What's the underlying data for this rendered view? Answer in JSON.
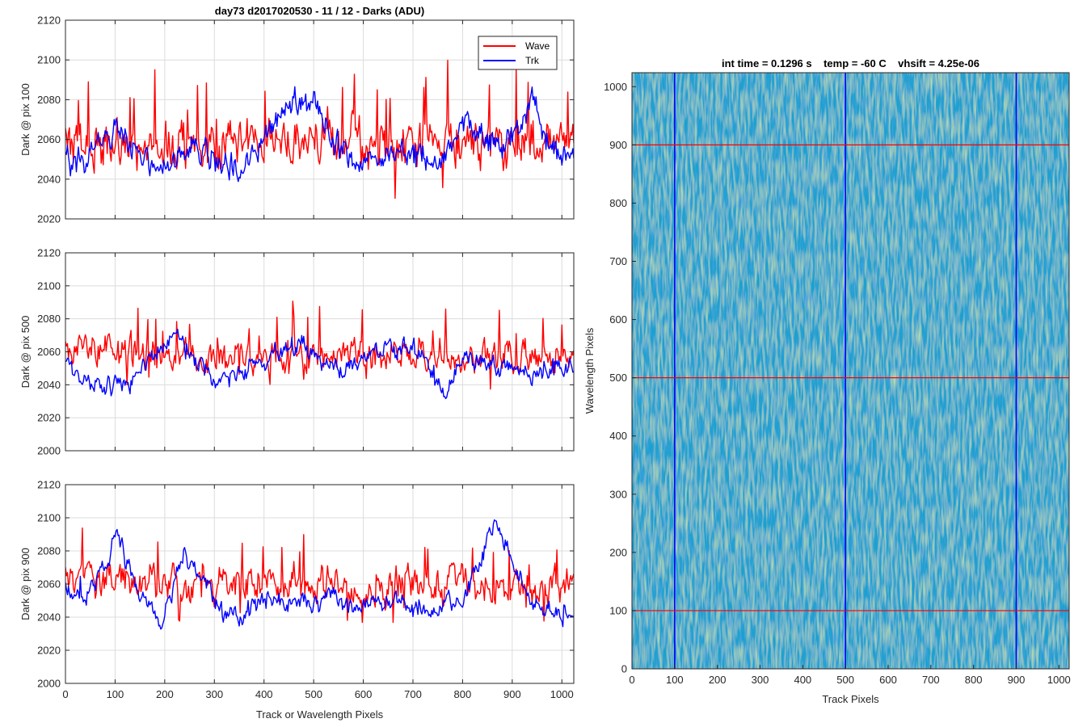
{
  "colors": {
    "wave": "#ff0000",
    "trk": "#0000ff",
    "grid": "#dcdcdc",
    "axis": "#262626",
    "heat_low": "#1f5ec9",
    "heat_mid": "#1aa0cf",
    "heat_high": "#9fcf5c"
  },
  "chart_data": [
    {
      "type": "line",
      "title": "day73 d2017020530 - 11 / 12 - Darks (ADU)",
      "xlabel": "",
      "ylabel": "Dark @ pix 100",
      "xlim": [
        0,
        1024
      ],
      "ylim": [
        2020,
        2120
      ],
      "xticks": [
        0,
        100,
        200,
        300,
        400,
        500,
        600,
        700,
        800,
        900,
        1000
      ],
      "xtick_labels": [
        "",
        "",
        "",
        "",
        "",
        "",
        "",
        "",
        "",
        "",
        ""
      ],
      "yticks": [
        2020,
        2040,
        2060,
        2080,
        2100,
        2120
      ],
      "ytick_labels": [
        "2020",
        "2040",
        "2060",
        "2080",
        "2100",
        "2120"
      ],
      "grid": true,
      "legend": {
        "placement": "top-right",
        "entries": [
          "Wave",
          "Trk"
        ]
      },
      "series": [
        {
          "name": "Wave",
          "color": "#ff0000",
          "mean": 2058,
          "noise": 10,
          "spike_prob": 0.05,
          "spike_amp": 35,
          "x": [
            0,
            100,
            200,
            300,
            400,
            500,
            600,
            700,
            800,
            900,
            1024
          ],
          "values": [
            2058,
            2057,
            2058,
            2056,
            2057,
            2060,
            2059,
            2058,
            2057,
            2059,
            2058
          ]
        },
        {
          "name": "Trk",
          "color": "#0000ff",
          "noise": 6,
          "spike_prob": 0.005,
          "spike_amp": 8,
          "x": [
            0,
            40,
            80,
            110,
            160,
            200,
            250,
            300,
            350,
            400,
            450,
            500,
            540,
            580,
            620,
            680,
            720,
            760,
            800,
            840,
            880,
            920,
            940,
            960,
            1000,
            1024
          ],
          "values": [
            2048,
            2052,
            2062,
            2066,
            2050,
            2048,
            2056,
            2050,
            2044,
            2060,
            2078,
            2080,
            2060,
            2048,
            2052,
            2054,
            2050,
            2050,
            2068,
            2062,
            2056,
            2070,
            2085,
            2066,
            2052,
            2048
          ]
        }
      ]
    },
    {
      "type": "line",
      "title": "",
      "xlabel": "",
      "ylabel": "Dark @ pix 500",
      "xlim": [
        0,
        1024
      ],
      "ylim": [
        2000,
        2120
      ],
      "xticks": [
        0,
        100,
        200,
        300,
        400,
        500,
        600,
        700,
        800,
        900,
        1000
      ],
      "xtick_labels": [
        "",
        "",
        "",
        "",
        "",
        "",
        "",
        "",
        "",
        "",
        ""
      ],
      "yticks": [
        2000,
        2020,
        2040,
        2060,
        2080,
        2100,
        2120
      ],
      "ytick_labels": [
        "2000",
        "2020",
        "2040",
        "2060",
        "2080",
        "2100",
        "2120"
      ],
      "grid": true,
      "series": [
        {
          "name": "Wave",
          "color": "#ff0000",
          "mean": 2058,
          "noise": 8,
          "spike_prob": 0.05,
          "spike_amp": 28,
          "x": [
            0,
            100,
            200,
            300,
            400,
            500,
            600,
            700,
            800,
            900,
            1024
          ],
          "values": [
            2062,
            2060,
            2057,
            2056,
            2058,
            2058,
            2057,
            2058,
            2056,
            2056,
            2057
          ]
        },
        {
          "name": "Trk",
          "color": "#0000ff",
          "noise": 5,
          "spike_prob": 0.005,
          "spike_amp": 8,
          "x": [
            0,
            40,
            80,
            130,
            180,
            220,
            260,
            300,
            350,
            400,
            450,
            480,
            520,
            560,
            620,
            680,
            720,
            760,
            800,
            850,
            900,
            940,
            980,
            1024
          ],
          "values": [
            2050,
            2044,
            2040,
            2042,
            2060,
            2070,
            2056,
            2042,
            2048,
            2056,
            2062,
            2064,
            2054,
            2050,
            2058,
            2062,
            2060,
            2032,
            2056,
            2054,
            2048,
            2044,
            2050,
            2052
          ]
        }
      ]
    },
    {
      "type": "line",
      "title": "",
      "xlabel": "Track or Wavelength Pixels",
      "ylabel": "Dark @ pix 900",
      "xlim": [
        0,
        1024
      ],
      "ylim": [
        2000,
        2120
      ],
      "xticks": [
        0,
        100,
        200,
        300,
        400,
        500,
        600,
        700,
        800,
        900,
        1000
      ],
      "xtick_labels": [
        "0",
        "100",
        "200",
        "300",
        "400",
        "500",
        "600",
        "700",
        "800",
        "900",
        "1000"
      ],
      "yticks": [
        2000,
        2020,
        2040,
        2060,
        2080,
        2100,
        2120
      ],
      "ytick_labels": [
        "2000",
        "2020",
        "2040",
        "2060",
        "2080",
        "2100",
        "2120"
      ],
      "grid": true,
      "series": [
        {
          "name": "Wave",
          "color": "#ff0000",
          "mean": 2060,
          "noise": 9,
          "spike_prob": 0.05,
          "spike_amp": 32,
          "x": [
            0,
            100,
            200,
            300,
            400,
            500,
            600,
            700,
            800,
            900,
            1024
          ],
          "values": [
            2060,
            2062,
            2060,
            2060,
            2060,
            2060,
            2058,
            2060,
            2060,
            2056,
            2058
          ]
        },
        {
          "name": "Trk",
          "color": "#0000ff",
          "noise": 5,
          "spike_prob": 0.005,
          "spike_amp": 8,
          "x": [
            0,
            40,
            70,
            105,
            140,
            190,
            240,
            280,
            320,
            360,
            400,
            460,
            500,
            540,
            580,
            620,
            680,
            740,
            800,
            840,
            865,
            900,
            940,
            980,
            1024
          ],
          "values": [
            2058,
            2050,
            2068,
            2088,
            2060,
            2036,
            2078,
            2060,
            2040,
            2042,
            2050,
            2050,
            2046,
            2058,
            2042,
            2050,
            2048,
            2046,
            2050,
            2078,
            2100,
            2076,
            2048,
            2044,
            2040
          ]
        }
      ]
    },
    {
      "type": "heatmap",
      "title": "int time = 0.1296 s    temp = -60 C    vhsift = 4.25e-06",
      "xlabel": "Track Pixels",
      "ylabel": "Wavelength Pixels",
      "xlim": [
        0,
        1024
      ],
      "ylim": [
        0,
        1024
      ],
      "xticks": [
        0,
        100,
        200,
        300,
        400,
        500,
        600,
        700,
        800,
        900,
        1000
      ],
      "xtick_labels": [
        "0",
        "100",
        "200",
        "300",
        "400",
        "500",
        "600",
        "700",
        "800",
        "900",
        "1000"
      ],
      "yticks": [
        0,
        100,
        200,
        300,
        400,
        500,
        600,
        700,
        800,
        900,
        1000
      ],
      "ytick_labels": [
        "0",
        "100",
        "200",
        "300",
        "400",
        "500",
        "600",
        "700",
        "800",
        "900",
        "1000"
      ],
      "grid": false,
      "colormap": "parula",
      "vlines": {
        "x": [
          100,
          500,
          900
        ],
        "color": "#0000ff"
      },
      "hlines": {
        "y": [
          100,
          500,
          900
        ],
        "color": "#ff0000"
      }
    }
  ]
}
